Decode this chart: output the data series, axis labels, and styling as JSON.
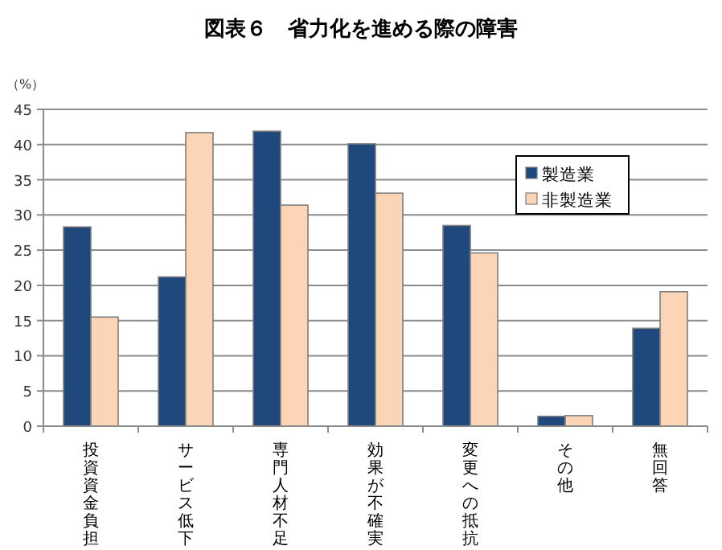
{
  "chart_data": {
    "type": "bar",
    "title": "図表６　省力化を進める際の障害",
    "ylabel": "（%）",
    "categories": [
      "投資資金負担",
      "サービス低下",
      "専門人材不足",
      "効果が不確実",
      "変更への抵抗",
      "その他",
      "無回答"
    ],
    "series": [
      {
        "name": "製造業",
        "color": "#1f497d",
        "values": [
          28.3,
          21.2,
          41.9,
          40.1,
          28.5,
          1.4,
          13.9
        ]
      },
      {
        "name": "非製造業",
        "color": "#fbd5b5",
        "values": [
          15.5,
          41.7,
          31.4,
          33.1,
          24.6,
          1.5,
          19.1
        ]
      }
    ],
    "ylim": [
      0,
      45
    ],
    "yticks": [
      0,
      5,
      10,
      15,
      20,
      25,
      30,
      35,
      40,
      45
    ],
    "grid": "y",
    "legend": "top right"
  }
}
